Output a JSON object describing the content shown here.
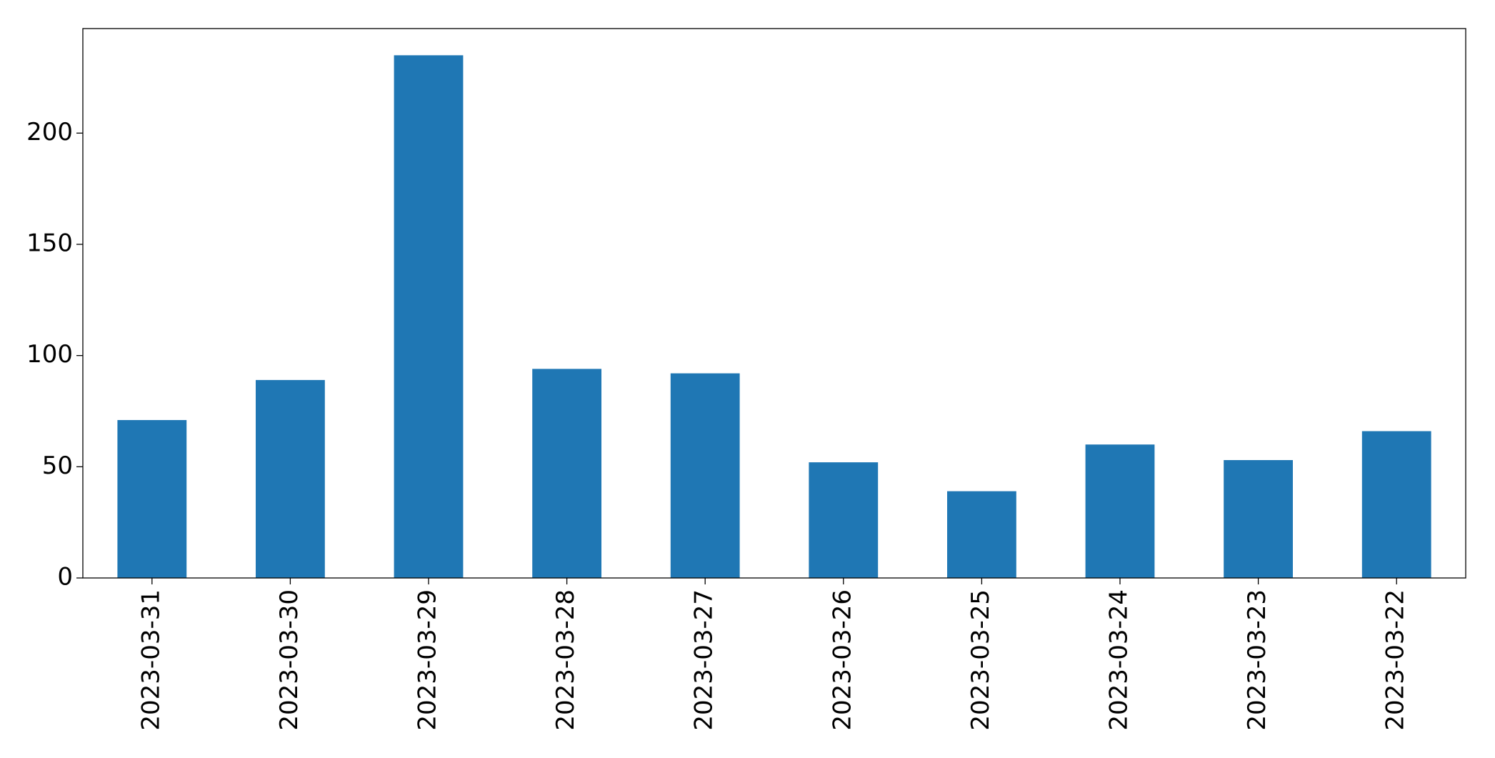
{
  "chart_data": {
    "type": "bar",
    "categories": [
      "2023-03-31",
      "2023-03-30",
      "2023-03-29",
      "2023-03-28",
      "2023-03-27",
      "2023-03-26",
      "2023-03-25",
      "2023-03-24",
      "2023-03-23",
      "2023-03-22"
    ],
    "values": [
      71,
      89,
      235,
      94,
      92,
      52,
      39,
      60,
      53,
      66
    ],
    "color": "#1f77b4",
    "ylim": [
      0,
      247
    ],
    "yticks": [
      0,
      50,
      100,
      150,
      200
    ],
    "grid": false
  }
}
